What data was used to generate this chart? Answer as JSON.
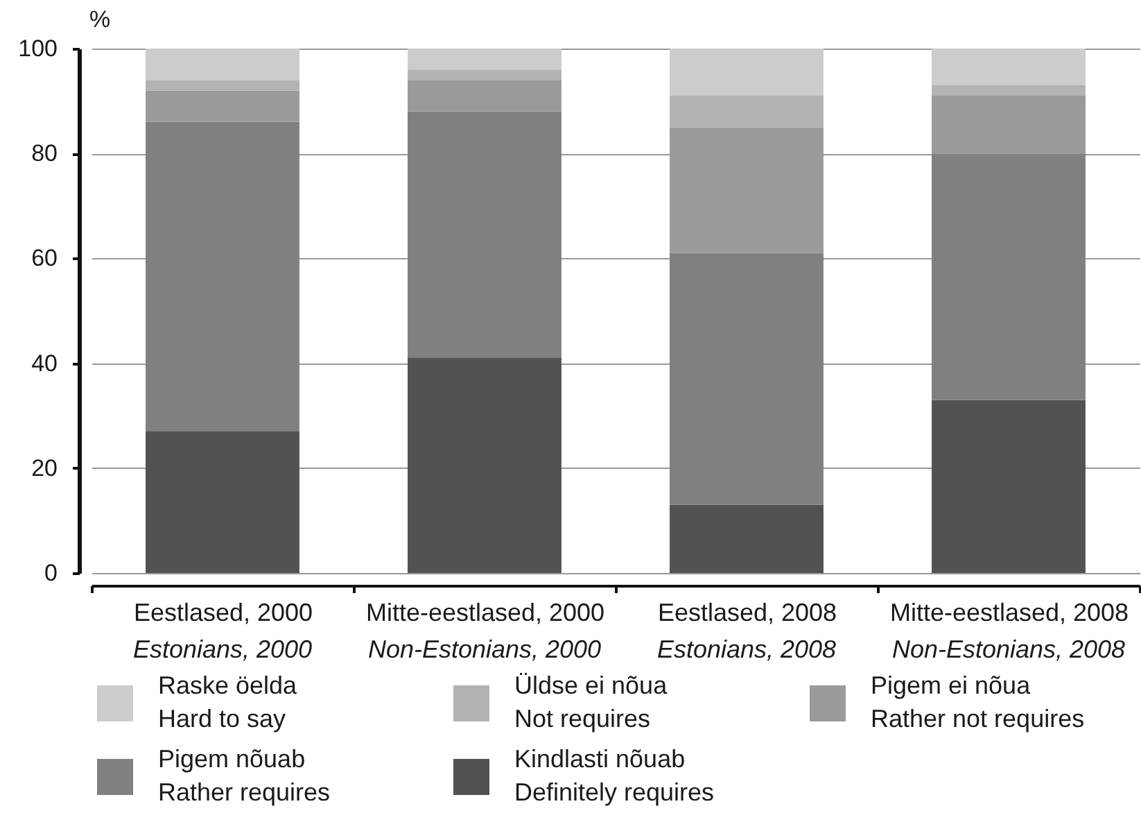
{
  "chart_data": {
    "type": "bar",
    "stacked": true,
    "ylabel": "%",
    "categories": [
      "Eestlased, 2000\nEstonians, 2000",
      "Mitte-eestlased, 2000\nNon-Estonians, 2000",
      "Eestlased, 2008\nEstonians, 2008",
      "Mitte-eestlased, 2008\nNon-Estonians, 2008"
    ],
    "series": [
      {
        "name": "Kindlasti nõuab\nDefinitely requires",
        "color": "#525252",
        "values": [
          27,
          41,
          13,
          33
        ]
      },
      {
        "name": "Pigem nõuab\nRather requires",
        "color": "#808080",
        "values": [
          59,
          47,
          48,
          47
        ]
      },
      {
        "name": "Pigem ei nõua\nRather not requires",
        "color": "#9a9a9a",
        "values": [
          6,
          6,
          24,
          11
        ]
      },
      {
        "name": "Üldse ei nõua\nNot requires",
        "color": "#b3b3b3",
        "values": [
          2,
          2,
          6,
          2
        ]
      },
      {
        "name": "Raske öelda\nHard to say",
        "color": "#cccccc",
        "values": [
          6,
          4,
          9,
          7
        ]
      }
    ],
    "ylim": [
      0,
      100
    ],
    "yticks": [
      0,
      20,
      40,
      60,
      80,
      100
    ],
    "grid": "y",
    "legend": "bottom"
  }
}
